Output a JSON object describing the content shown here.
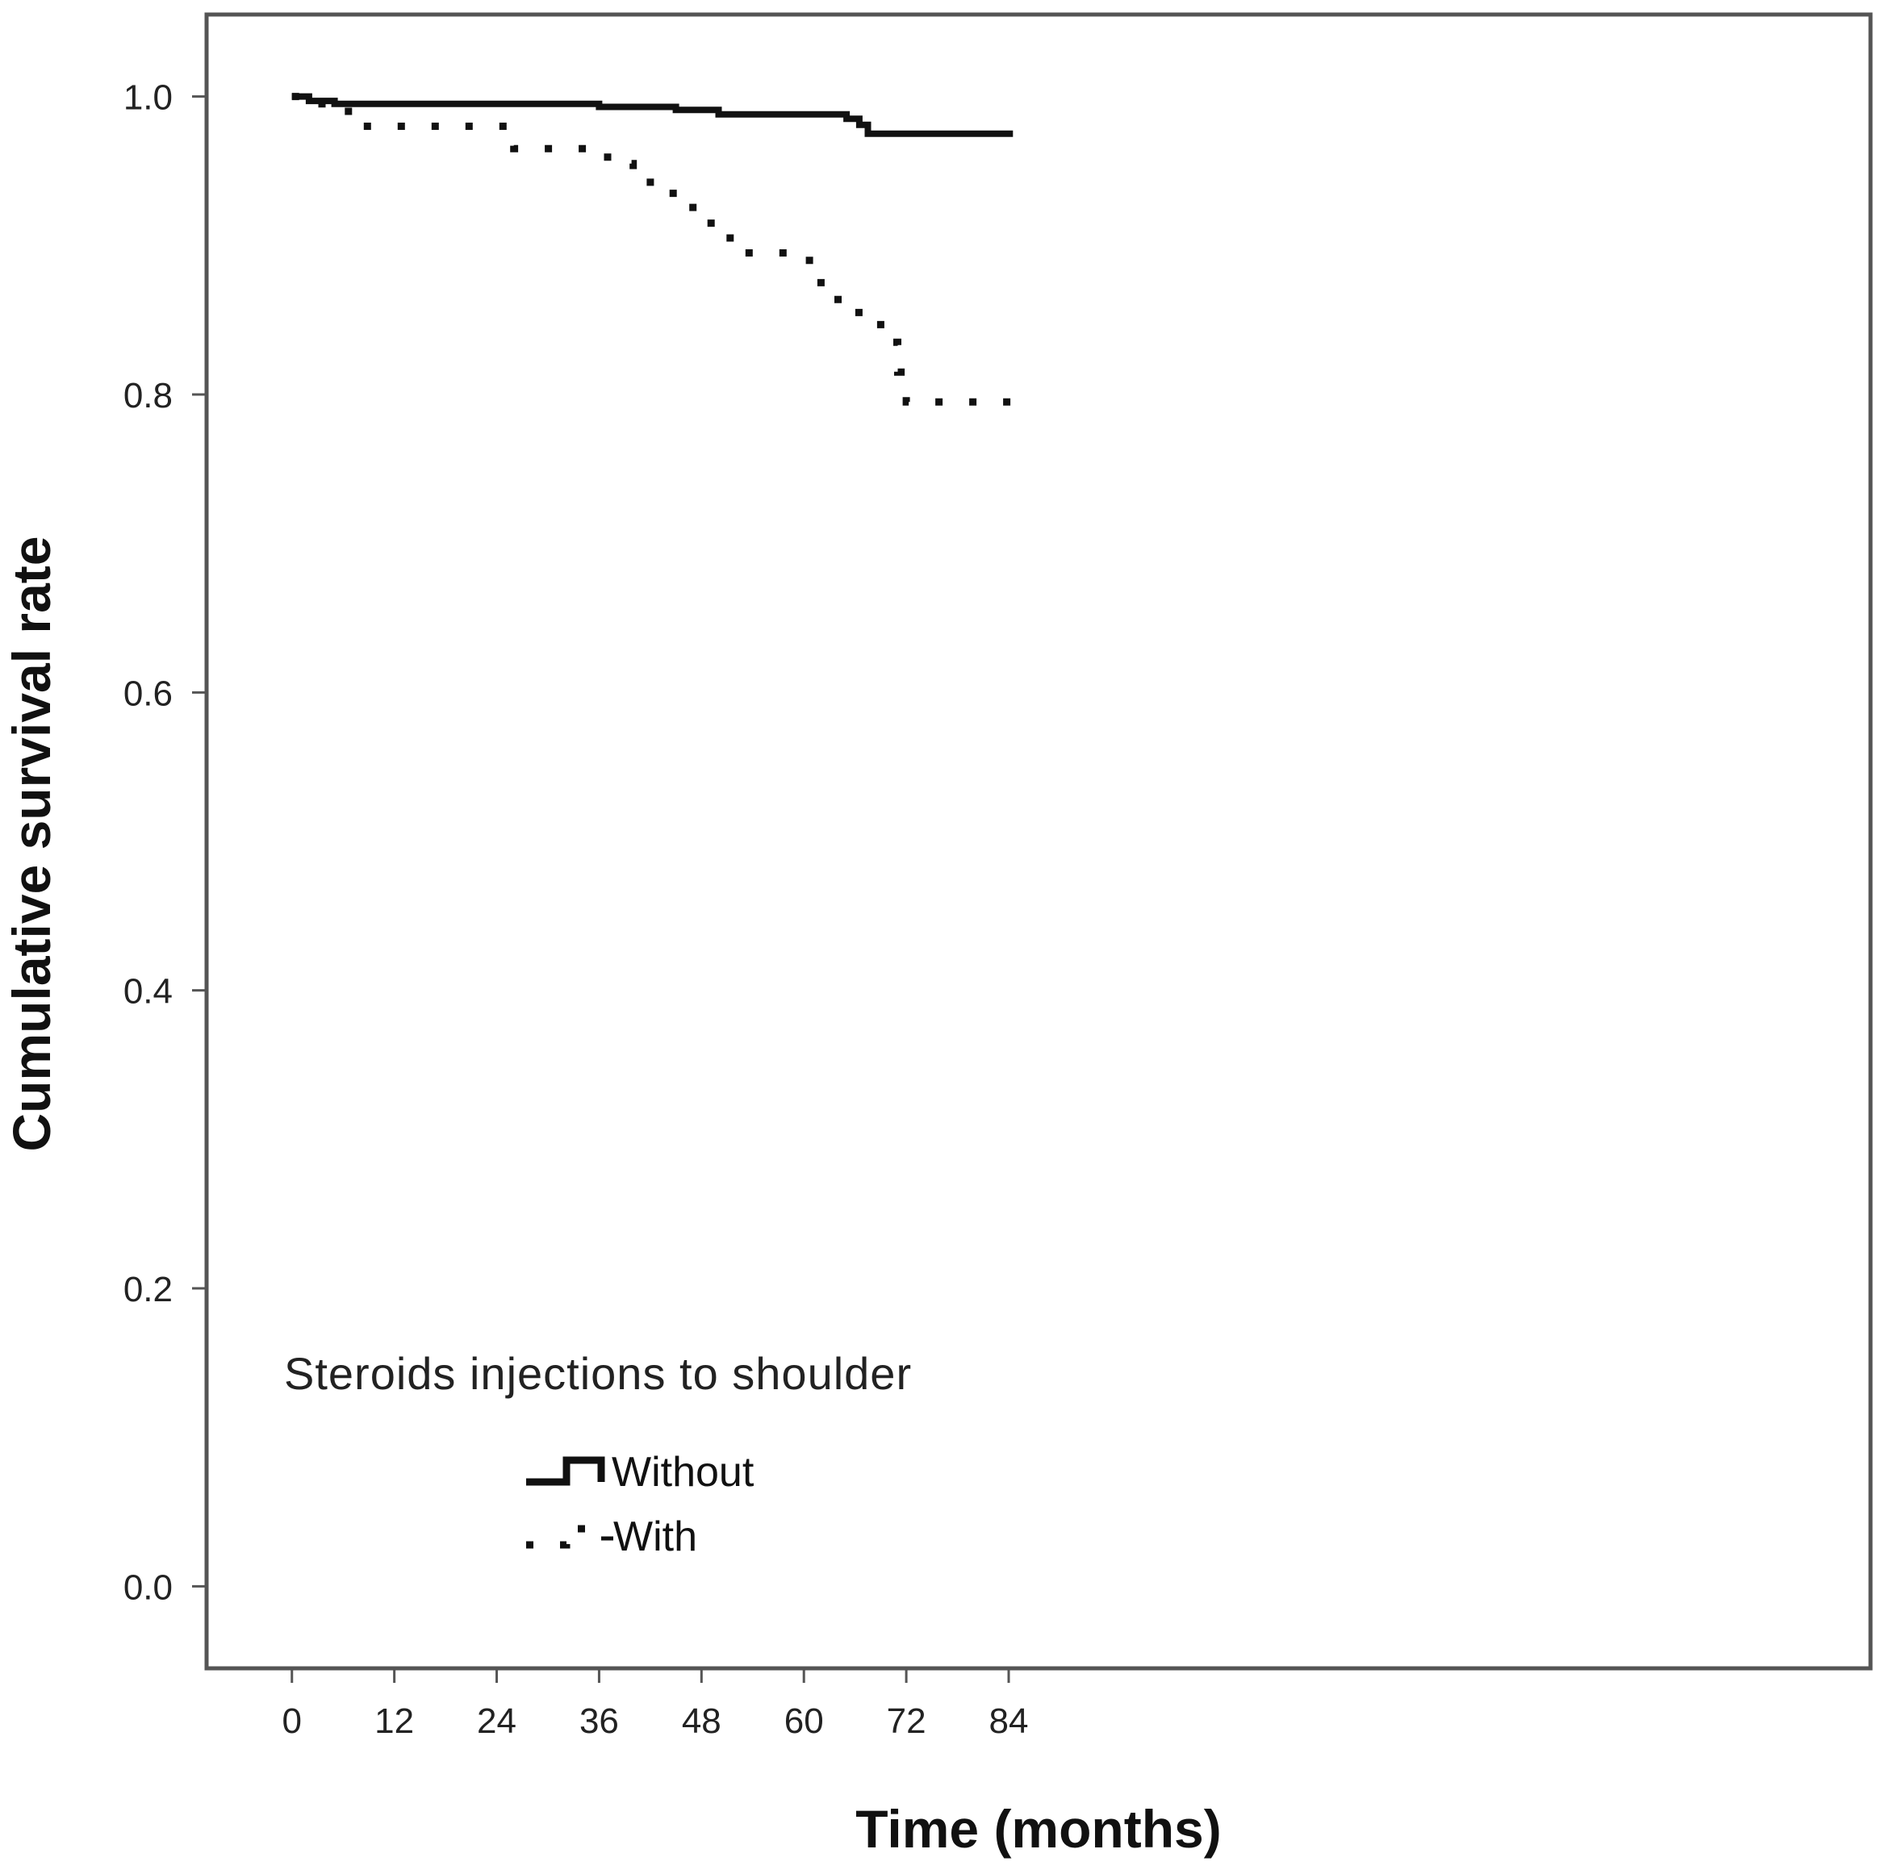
{
  "chart_data": {
    "type": "line",
    "subtype": "kaplan-meier step",
    "title": "",
    "xlabel": "Time (months)",
    "ylabel": "Cumulative survival rate",
    "xlim": [
      -10,
      185
    ],
    "ylim": [
      -0.055,
      1.055
    ],
    "xticks": [
      0,
      12,
      24,
      36,
      48,
      60,
      72,
      84
    ],
    "xtick_labels": [
      "0",
      "12",
      "24",
      "36",
      "48",
      "60",
      "72",
      "84"
    ],
    "yticks": [
      0.0,
      0.2,
      0.4,
      0.6,
      0.8,
      1.0
    ],
    "ytick_labels": [
      "0.0",
      "0.2",
      "0.4",
      "0.6",
      "0.8",
      "1.0"
    ],
    "grid": false,
    "legend": {
      "title": "Steroids injections to shoulder",
      "placement": "bottom-left"
    },
    "series": [
      {
        "name": "Without",
        "style": "solid",
        "color": "#111111",
        "x": [
          0,
          2,
          5,
          36,
          45,
          50,
          65,
          66.5,
          67.5,
          84.5
        ],
        "y": [
          1.0,
          0.997,
          0.995,
          0.993,
          0.991,
          0.988,
          0.985,
          0.981,
          0.975,
          0.975
        ]
      },
      {
        "name": "With",
        "style": "dotted",
        "color": "#111111",
        "x": [
          0,
          3,
          6,
          8,
          26,
          37,
          40,
          42,
          47,
          50,
          53,
          60,
          62,
          64,
          69,
          71,
          72,
          84.5
        ],
        "y": [
          1.0,
          0.995,
          0.99,
          0.98,
          0.965,
          0.955,
          0.945,
          0.935,
          0.915,
          0.905,
          0.895,
          0.89,
          0.875,
          0.855,
          0.835,
          0.815,
          0.795,
          0.795
        ]
      }
    ],
    "colors": {
      "frame": "#555555",
      "ink": "#111111"
    }
  }
}
